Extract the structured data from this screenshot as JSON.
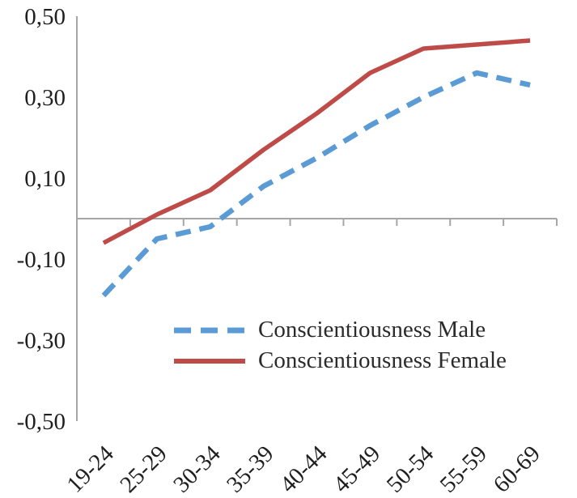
{
  "chart_data": {
    "type": "line",
    "categories": [
      "19-24",
      "25-29",
      "30-34",
      "35-39",
      "40-44",
      "45-49",
      "50-54",
      "55-59",
      "60-69"
    ],
    "series": [
      {
        "name": "Conscientiousness Male",
        "color": "#5B9BD5",
        "style": "dashed",
        "values": [
          -0.19,
          -0.05,
          -0.02,
          0.08,
          0.15,
          0.23,
          0.3,
          0.36,
          0.33
        ]
      },
      {
        "name": "Conscientiousness Female",
        "color": "#BE4B48",
        "style": "solid",
        "values": [
          -0.06,
          0.01,
          0.07,
          0.17,
          0.26,
          0.36,
          0.42,
          0.43,
          0.44
        ]
      }
    ],
    "title": "",
    "xlabel": "",
    "ylabel": "",
    "ylim": [
      -0.5,
      0.5
    ],
    "ytick_values": [
      0.5,
      0.3,
      0.1,
      -0.1,
      -0.3,
      -0.5
    ],
    "ytick_labels": [
      "0,50",
      "0,30",
      "0,10",
      "-0,10",
      "-0,30",
      "-0,50"
    ],
    "grid": false,
    "legend_position": "inside-bottom-left",
    "axis_color": "#a6a6a6",
    "text_color": "#1f1f1f"
  }
}
